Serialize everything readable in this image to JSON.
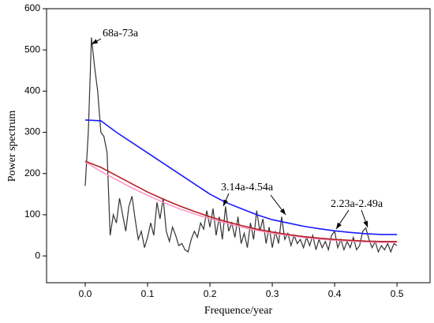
{
  "chart_data": {
    "type": "line",
    "xlabel": "Frequence/year",
    "ylabel": "Power spectrum",
    "xlim": [
      -0.062,
      0.553
    ],
    "ylim": [
      -65,
      600
    ],
    "xticks": [
      {
        "value": 0,
        "label": "0.0"
      },
      0.1,
      0.2,
      0.3,
      0.4,
      0.5
    ],
    "yticks": [
      0,
      100,
      200,
      300,
      400,
      500,
      600
    ],
    "annotations": [
      "68a-73a",
      "3.14a-4.54a",
      "2.23a-2.49a"
    ],
    "series": [
      {
        "color": "#333333",
        "x": [
          0,
          0.005,
          0.01,
          0.015,
          0.02,
          0.025,
          0.03,
          0.035,
          0.04,
          0.045,
          0.05,
          0.055,
          0.06,
          0.065,
          0.07,
          0.075,
          0.08,
          0.085,
          0.09,
          0.095,
          0.1,
          0.105,
          0.11,
          0.115,
          0.12,
          0.125,
          0.13,
          0.135,
          0.14,
          0.145,
          0.15,
          0.155,
          0.16,
          0.165,
          0.17,
          0.175,
          0.18,
          0.185,
          0.19,
          0.195,
          0.2,
          0.205,
          0.21,
          0.215,
          0.22,
          0.225,
          0.23,
          0.235,
          0.24,
          0.245,
          0.25,
          0.255,
          0.26,
          0.265,
          0.27,
          0.275,
          0.28,
          0.285,
          0.29,
          0.295,
          0.3,
          0.305,
          0.31,
          0.315,
          0.32,
          0.325,
          0.33,
          0.335,
          0.34,
          0.345,
          0.35,
          0.355,
          0.36,
          0.365,
          0.37,
          0.375,
          0.38,
          0.385,
          0.39,
          0.395,
          0.4,
          0.405,
          0.41,
          0.415,
          0.42,
          0.425,
          0.43,
          0.435,
          0.44,
          0.445,
          0.45,
          0.455,
          0.46,
          0.465,
          0.47,
          0.475,
          0.48,
          0.485,
          0.49,
          0.495,
          0.5
        ],
        "values": [
          170,
          300,
          530,
          460,
          400,
          300,
          290,
          250,
          50,
          100,
          80,
          140,
          100,
          60,
          120,
          145,
          90,
          40,
          60,
          20,
          45,
          80,
          50,
          130,
          90,
          140,
          60,
          35,
          70,
          50,
          25,
          30,
          15,
          10,
          40,
          60,
          45,
          80,
          65,
          110,
          70,
          115,
          50,
          95,
          40,
          120,
          60,
          80,
          45,
          95,
          30,
          55,
          20,
          80,
          40,
          110,
          60,
          90,
          30,
          70,
          20,
          60,
          30,
          95,
          40,
          55,
          25,
          50,
          30,
          40,
          20,
          45,
          25,
          50,
          15,
          40,
          20,
          35,
          15,
          50,
          60,
          20,
          40,
          15,
          35,
          20,
          45,
          15,
          25,
          60,
          68,
          40,
          20,
          35,
          10,
          25,
          15,
          30,
          10,
          30,
          25
        ]
      },
      {
        "color": "#ff99cc",
        "x": [
          0,
          0.025,
          0.05,
          0.075,
          0.1,
          0.125,
          0.15,
          0.175,
          0.2,
          0.225,
          0.25,
          0.275,
          0.3,
          0.325,
          0.35,
          0.375,
          0.4,
          0.425,
          0.45,
          0.475,
          0.5
        ],
        "values": [
          228,
          205,
          185,
          165,
          147,
          130,
          115,
          102,
          90,
          80,
          70,
          62,
          55,
          50,
          45,
          41,
          38,
          36,
          34,
          33,
          33
        ]
      },
      {
        "color": "#b22222",
        "x": [
          0,
          0.025,
          0.05,
          0.075,
          0.1,
          0.125,
          0.15,
          0.175,
          0.2,
          0.225,
          0.25,
          0.275,
          0.3,
          0.325,
          0.35,
          0.375,
          0.4,
          0.425,
          0.45,
          0.475,
          0.5
        ],
        "values": [
          230,
          215,
          195,
          175,
          155,
          138,
          122,
          108,
          95,
          84,
          74,
          65,
          58,
          52,
          47,
          43,
          40,
          38,
          36,
          35,
          35
        ]
      },
      {
        "color": "#1a1aff",
        "x": [
          0,
          0.025,
          0.05,
          0.075,
          0.1,
          0.125,
          0.15,
          0.175,
          0.2,
          0.225,
          0.25,
          0.275,
          0.3,
          0.325,
          0.35,
          0.375,
          0.4,
          0.425,
          0.45,
          0.475,
          0.5
        ],
        "values": [
          330,
          328,
          300,
          275,
          250,
          225,
          200,
          175,
          150,
          130,
          115,
          100,
          88,
          80,
          72,
          66,
          61,
          57,
          54,
          52,
          52
        ]
      }
    ]
  }
}
